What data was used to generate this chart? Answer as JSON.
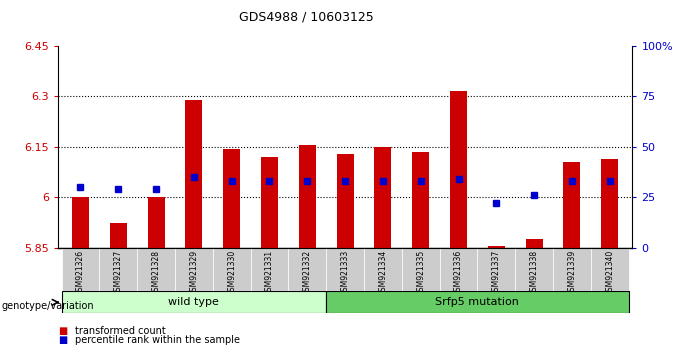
{
  "title": "GDS4988 / 10603125",
  "samples": [
    "GSM921326",
    "GSM921327",
    "GSM921328",
    "GSM921329",
    "GSM921330",
    "GSM921331",
    "GSM921332",
    "GSM921333",
    "GSM921334",
    "GSM921335",
    "GSM921336",
    "GSM921337",
    "GSM921338",
    "GSM921339",
    "GSM921340"
  ],
  "transformed_counts": [
    6.0,
    5.925,
    6.0,
    6.29,
    6.145,
    6.12,
    6.155,
    6.13,
    6.15,
    6.135,
    6.315,
    5.855,
    5.875,
    6.105,
    6.115
  ],
  "percentile_ranks": [
    30,
    29,
    29,
    35,
    33,
    33,
    33,
    33,
    33,
    33,
    34,
    22,
    26,
    33,
    33
  ],
  "ymin": 5.85,
  "ymax": 6.45,
  "yticks": [
    5.85,
    6.0,
    6.15,
    6.3,
    6.45
  ],
  "ytick_labels": [
    "5.85",
    "6",
    "6.15",
    "6.3",
    "6.45"
  ],
  "right_yticks": [
    0,
    25,
    50,
    75,
    100
  ],
  "right_ytick_labels": [
    "0",
    "25",
    "50",
    "75",
    "100%"
  ],
  "bar_color": "#cc0000",
  "percentile_color": "#0000cc",
  "grid_color": "#000000",
  "bg_color": "#ffffff",
  "plot_bg_color": "#ffffff",
  "groups": [
    {
      "label": "wild type",
      "start": 0,
      "end": 7,
      "color": "#ccffcc"
    },
    {
      "label": "Srfp5 mutation",
      "start": 7,
      "end": 15,
      "color": "#66cc66"
    }
  ],
  "group_label_prefix": "genotype/variation",
  "legend_items": [
    {
      "label": "transformed count",
      "color": "#cc0000"
    },
    {
      "label": "percentile rank within the sample",
      "color": "#0000cc"
    }
  ],
  "bar_width": 0.45,
  "baseline": 5.85,
  "grid_lines": [
    6.0,
    6.15,
    6.3
  ],
  "xtick_bg_color": "#cccccc"
}
